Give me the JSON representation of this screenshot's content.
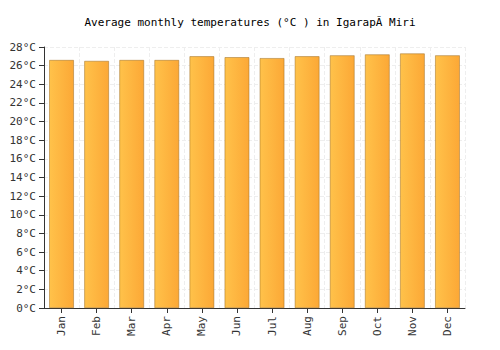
{
  "chart_data": {
    "type": "bar",
    "title": "Average monthly temperatures (°C ) in IgarapÃ Miri",
    "categories": [
      "Jan",
      "Feb",
      "Mar",
      "Apr",
      "May",
      "Jun",
      "Jul",
      "Aug",
      "Sep",
      "Oct",
      "Nov",
      "Dec"
    ],
    "values": [
      26.6,
      26.5,
      26.6,
      26.6,
      27.0,
      26.9,
      26.8,
      27.0,
      27.1,
      27.2,
      27.3,
      27.1
    ],
    "color": "#fca836",
    "ylim": [
      0,
      28
    ],
    "yticks": [
      {
        "value": 0,
        "label": "0°C"
      },
      {
        "value": 2,
        "label": "2°C"
      },
      {
        "value": 4,
        "label": "4°C"
      },
      {
        "value": 6,
        "label": "6°C"
      },
      {
        "value": 8,
        "label": "8°C"
      },
      {
        "value": 10,
        "label": "10°C"
      },
      {
        "value": 12,
        "label": "12°C"
      },
      {
        "value": 14,
        "label": "14°C"
      },
      {
        "value": 16,
        "label": "16°C"
      },
      {
        "value": 18,
        "label": "18°C"
      },
      {
        "value": 20,
        "label": "20°C"
      },
      {
        "value": 22,
        "label": "22°C"
      },
      {
        "value": 24,
        "label": "24°C"
      },
      {
        "value": 26,
        "label": "26°C"
      },
      {
        "value": 28,
        "label": "28°C"
      }
    ],
    "grid": true
  }
}
